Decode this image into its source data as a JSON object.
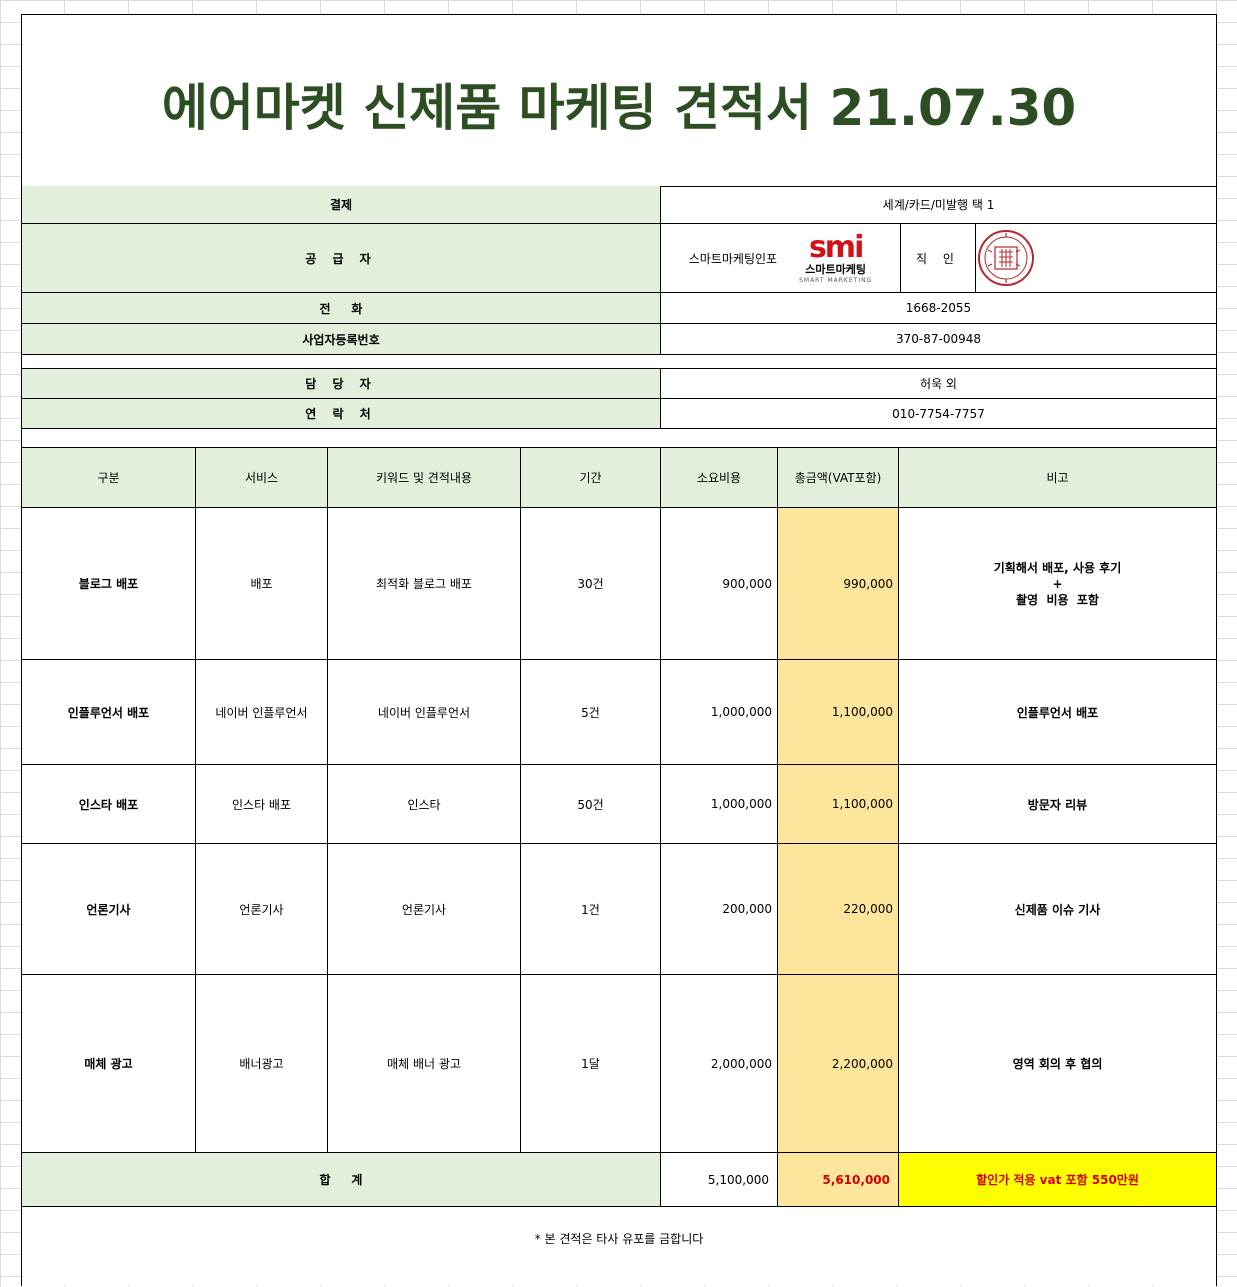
{
  "title": "에어마켓 신제품 마케팅 견적서 21.07.30",
  "info": {
    "payment_label": "결제",
    "payment_value": "세계/카드/미발행 택 1",
    "supplier_label": "공 급 자",
    "supplier_name": "스마트마케팅인포",
    "logo_mark": "smi",
    "logo_korean": "스마트마케팅",
    "logo_english": "SMART MARKETING",
    "seal_label": "직 인",
    "phone_label": "전     화",
    "phone_value": "1668-2055",
    "bizno_label": "사업자등록번호",
    "bizno_value": "370-87-00948",
    "manager_label": "담 당 자",
    "manager_value": "허욱 외",
    "contact_label": "연 락 처",
    "contact_value": "010-7754-7757"
  },
  "table": {
    "headers": [
      "구분",
      "서비스",
      "키워드 및 견적내용",
      "기간",
      "소요비용",
      "총금액(VAT포함)",
      "비고"
    ],
    "rows": [
      {
        "category": "블로그 배포",
        "service": "배포",
        "content": "최적화 블로그 배포",
        "period": "30건",
        "cost": "900,000",
        "total": "990,000",
        "remark_line1": "기획해서 배포, 사용 후기",
        "remark_line2": "+",
        "remark_line3": "촬영  비용  포함"
      },
      {
        "category": "인플루언서 배포",
        "service": "네이버 인플루언서",
        "content": "네이버 인플루언서",
        "period": "5건",
        "cost": "1,000,000",
        "total": "1,100,000",
        "remark_line1": "인플루언서 배포"
      },
      {
        "category": "인스타 배포",
        "service": "인스타 배포",
        "content": "인스타",
        "period": "50건",
        "cost": "1,000,000",
        "total": "1,100,000",
        "remark_line1": "방문자 리뷰"
      },
      {
        "category": "언론기사",
        "service": "언론기사",
        "content": "언론기사",
        "period": "1건",
        "cost": "200,000",
        "total": "220,000",
        "remark_line1": "신제품 이슈 기사"
      },
      {
        "category": "매체 광고",
        "service": "배너광고",
        "content": "매체 배너 광고",
        "period": "1달",
        "cost": "2,000,000",
        "total": "2,200,000",
        "remark_line1": "영역 회의 후 협의"
      }
    ],
    "sum_label": "합     계",
    "sum_cost": "5,100,000",
    "sum_total": "5,610,000",
    "sum_remark": "할인가 적용 vat 포함 550만원"
  },
  "footnote": "* 본 견적은 타사 유포를 금합니다",
  "colors": {
    "title": "#2d4d22",
    "header_bg": "#e2efdb",
    "total_bg": "#fde59b",
    "highlight_bg": "#ffff00",
    "emphasis_text": "#d40000",
    "seal": "#b3282d"
  }
}
